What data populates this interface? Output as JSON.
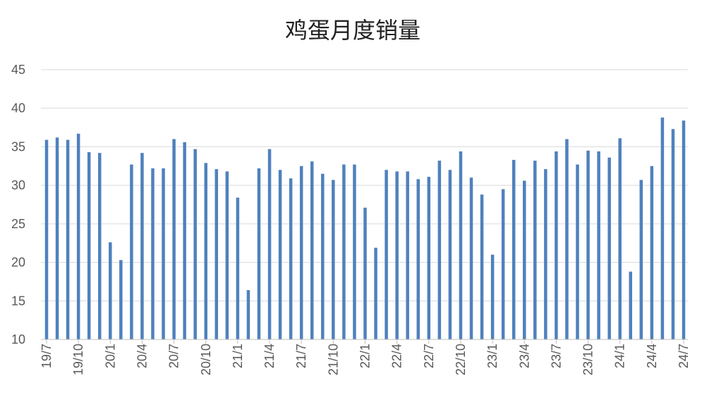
{
  "chart_data": {
    "type": "bar",
    "title": "鸡蛋月度销量",
    "xlabel": "",
    "ylabel": "",
    "ylim": [
      10,
      45
    ],
    "yticks": [
      10,
      15,
      20,
      25,
      30,
      35,
      40,
      45
    ],
    "grid": true,
    "legend": "none",
    "bar_color": "#4f81bd",
    "categories": [
      "19/7",
      "19/8",
      "19/9",
      "19/10",
      "19/11",
      "19/12",
      "20/1",
      "20/2",
      "20/3",
      "20/4",
      "20/5",
      "20/6",
      "20/7",
      "20/8",
      "20/9",
      "20/10",
      "20/11",
      "20/12",
      "21/1",
      "21/2",
      "21/3",
      "21/4",
      "21/5",
      "21/6",
      "21/7",
      "21/8",
      "21/9",
      "21/10",
      "21/11",
      "21/12",
      "22/1",
      "22/2",
      "22/3",
      "22/4",
      "22/5",
      "22/6",
      "22/7",
      "22/8",
      "22/9",
      "22/10",
      "22/11",
      "22/12",
      "23/1",
      "23/2",
      "23/3",
      "23/4",
      "23/5",
      "23/6",
      "23/7",
      "23/8",
      "23/9",
      "23/10",
      "23/11",
      "23/12",
      "24/1",
      "24/2",
      "24/3",
      "24/4",
      "24/5",
      "24/6",
      "24/7"
    ],
    "tick_labels": [
      "19/7",
      "19/10",
      "20/1",
      "20/4",
      "20/7",
      "20/10",
      "21/1",
      "21/4",
      "21/7",
      "21/10",
      "22/1",
      "22/4",
      "22/7",
      "22/10",
      "23/1",
      "23/4",
      "23/7",
      "23/10",
      "24/1",
      "24/4",
      "24/7"
    ],
    "values": [
      35.9,
      36.2,
      35.9,
      36.7,
      34.3,
      34.2,
      22.6,
      20.3,
      32.7,
      34.2,
      32.2,
      32.2,
      36.0,
      35.6,
      34.7,
      32.9,
      32.1,
      31.8,
      28.4,
      16.4,
      32.2,
      34.7,
      32.0,
      30.9,
      32.5,
      33.1,
      31.5,
      30.7,
      32.7,
      32.7,
      27.1,
      21.9,
      32.0,
      31.8,
      31.8,
      30.8,
      31.1,
      33.2,
      32.0,
      34.4,
      31.0,
      28.8,
      21.0,
      29.5,
      33.3,
      30.6,
      33.2,
      32.1,
      34.4,
      36.0,
      32.7,
      34.5,
      34.4,
      33.6,
      36.1,
      18.8,
      30.7,
      32.5,
      38.8,
      37.3,
      38.4
    ]
  }
}
